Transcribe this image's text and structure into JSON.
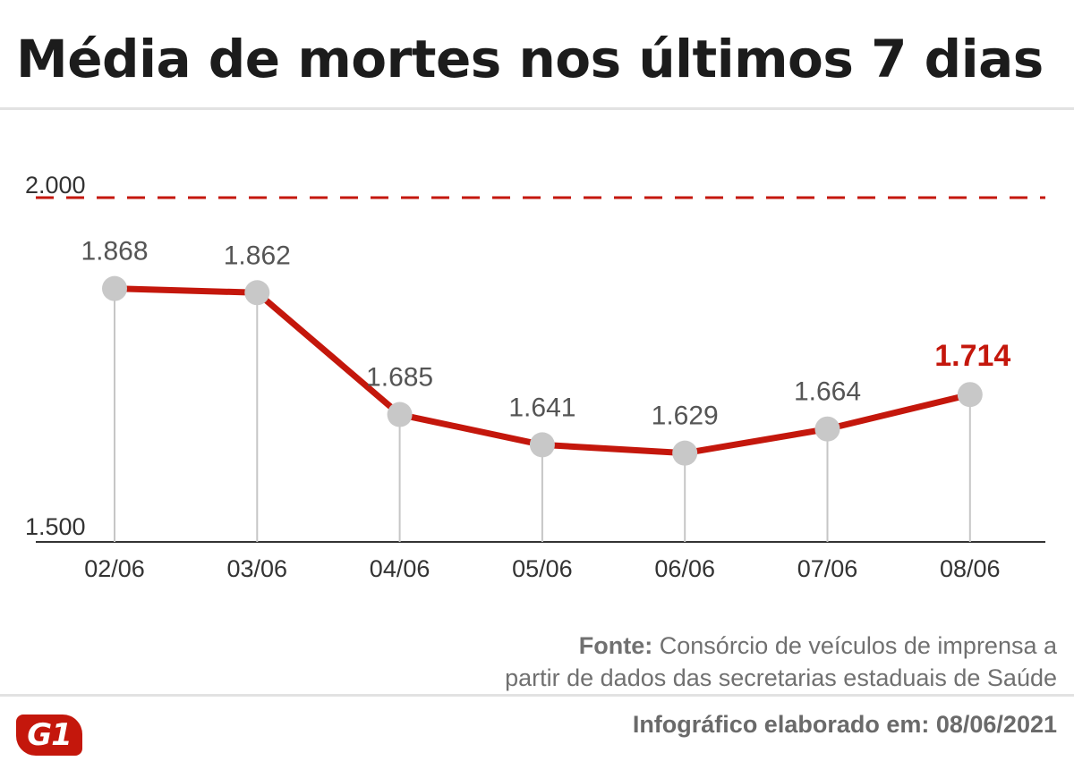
{
  "header": {
    "title": "Média de mortes nos últimos 7 dias"
  },
  "chart_data": {
    "type": "line",
    "title": "Média de mortes nos últimos 7 dias",
    "categories": [
      "02/06",
      "03/06",
      "04/06",
      "05/06",
      "06/06",
      "07/06",
      "08/06"
    ],
    "series": [
      {
        "values": [
          1868,
          1862,
          1685,
          1641,
          1629,
          1664,
          1714
        ],
        "labels": [
          "1.868",
          "1.862",
          "1.685",
          "1.641",
          "1.629",
          "1.664",
          "1.714"
        ],
        "highlight_last": true
      }
    ],
    "ylim": [
      1500,
      2000
    ],
    "y_tick_labels": [
      "1.500",
      "2.000"
    ],
    "reference_line": {
      "value": 2000,
      "style": "dashed"
    },
    "grid": false,
    "legend": "none",
    "colors": {
      "line": "#c4170c",
      "marker": "#c8c8c8",
      "label": "#555555",
      "highlight_label": "#c4170c",
      "axis": "#333333",
      "reference": "#c4170c"
    }
  },
  "footer": {
    "source_label": "Fonte:",
    "source_line1": "Consórcio de veículos de imprensa a",
    "source_line2": "partir de dados das secretarias estaduais de Saúde",
    "credit": "Infográfico elaborado em: 08/06/2021",
    "logo_text": "G1"
  }
}
